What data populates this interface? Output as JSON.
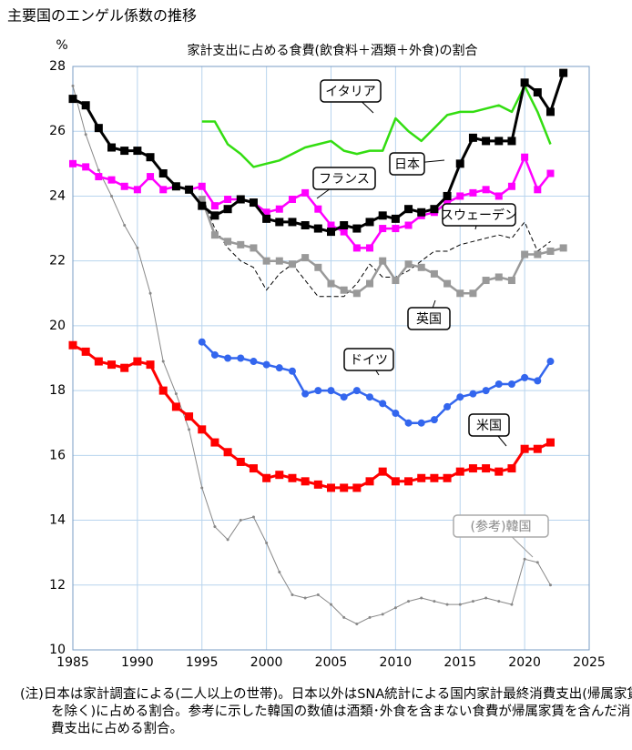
{
  "chart_data": {
    "type": "line",
    "title": "主要国のエンゲル係数の推移",
    "subtitle": "家計支出に占める食費(飲食料＋酒類＋外食)の割合",
    "y_label": "%",
    "xlim": [
      1985,
      2025
    ],
    "xticks": [
      1985,
      1990,
      1995,
      2000,
      2005,
      2010,
      2015,
      2020,
      2025
    ],
    "ylim": [
      10,
      28
    ],
    "yticks": [
      10,
      12,
      14,
      16,
      18,
      20,
      22,
      24,
      26,
      28
    ],
    "grid": true,
    "note": "(注)日本は家計調査による(二人以上の世帯)。日本以外はSNA統計による国内家計最終消費支出(帰属家賃を除く)に占める割合。参考に示した韓国の数値は酒類･外食を含まない食費が帰属家賃を含んだ消費支出に占める割合。",
    "series": [
      {
        "name": "(参考)韓国",
        "color": "#888888",
        "width": 1,
        "marker": "dot",
        "x": [
          1985,
          1986,
          1987,
          1988,
          1989,
          1990,
          1991,
          1992,
          1993,
          1994,
          1995,
          1996,
          1997,
          1998,
          1999,
          2000,
          2001,
          2002,
          2003,
          2004,
          2005,
          2006,
          2007,
          2008,
          2009,
          2010,
          2011,
          2012,
          2013,
          2014,
          2015,
          2016,
          2017,
          2018,
          2019,
          2020,
          2021,
          2022
        ],
        "values": [
          27.4,
          25.9,
          24.8,
          24.0,
          23.1,
          22.4,
          21.0,
          18.9,
          17.9,
          16.8,
          15.0,
          13.8,
          13.4,
          14.0,
          14.1,
          13.3,
          12.4,
          11.7,
          11.6,
          11.7,
          11.4,
          11.0,
          10.8,
          11.0,
          11.1,
          11.3,
          11.5,
          11.6,
          11.5,
          11.4,
          11.4,
          11.5,
          11.6,
          11.5,
          11.4,
          12.8,
          12.7,
          12.0
        ]
      },
      {
        "name": "スウェーデン",
        "color": "#000000",
        "width": 1,
        "marker": "none",
        "dashed": true,
        "x": [
          1995,
          1996,
          1997,
          1998,
          1999,
          2000,
          2001,
          2002,
          2003,
          2004,
          2005,
          2006,
          2007,
          2008,
          2009,
          2010,
          2011,
          2012,
          2013,
          2014,
          2015,
          2016,
          2017,
          2018,
          2019,
          2020,
          2021,
          2022
        ],
        "values": [
          24.0,
          23.0,
          22.4,
          22.0,
          21.8,
          21.1,
          21.6,
          21.9,
          21.4,
          20.9,
          20.9,
          20.9,
          21.3,
          21.9,
          21.5,
          21.5,
          21.7,
          22.0,
          22.3,
          22.3,
          22.5,
          22.6,
          22.7,
          22.8,
          22.7,
          23.2,
          22.3,
          22.6
        ]
      },
      {
        "name": "英国",
        "color": "#999999",
        "width": 2.5,
        "marker": "square",
        "x": [
          1995,
          1996,
          1997,
          1998,
          1999,
          2000,
          2001,
          2002,
          2003,
          2004,
          2005,
          2006,
          2007,
          2008,
          2009,
          2010,
          2011,
          2012,
          2013,
          2014,
          2015,
          2016,
          2017,
          2018,
          2019,
          2020,
          2021,
          2022,
          2023
        ],
        "values": [
          23.9,
          22.8,
          22.6,
          22.5,
          22.4,
          22.0,
          22.0,
          21.9,
          22.1,
          21.8,
          21.3,
          21.1,
          21.0,
          21.3,
          22.0,
          21.4,
          21.9,
          21.8,
          21.6,
          21.3,
          21.0,
          21.0,
          21.4,
          21.5,
          21.4,
          22.2,
          22.2,
          22.3,
          22.4
        ]
      },
      {
        "name": "イタリア",
        "color": "#33dd11",
        "width": 2.5,
        "marker": "none",
        "x": [
          1995,
          1996,
          1997,
          1998,
          1999,
          2000,
          2001,
          2002,
          2003,
          2004,
          2005,
          2006,
          2007,
          2008,
          2009,
          2010,
          2011,
          2012,
          2013,
          2014,
          2015,
          2016,
          2017,
          2018,
          2019,
          2020,
          2021,
          2022
        ],
        "values": [
          26.3,
          26.3,
          25.6,
          25.3,
          24.9,
          25.0,
          25.1,
          25.3,
          25.5,
          25.6,
          25.7,
          25.4,
          25.3,
          25.4,
          25.4,
          26.4,
          26.0,
          25.7,
          26.1,
          26.5,
          26.6,
          26.6,
          26.7,
          26.8,
          26.6,
          27.4,
          26.6,
          25.6
        ]
      },
      {
        "name": "フランス",
        "color": "#ff00ff",
        "width": 2.5,
        "marker": "square",
        "x": [
          1985,
          1986,
          1987,
          1988,
          1989,
          1990,
          1991,
          1992,
          1993,
          1994,
          1995,
          1996,
          1997,
          1998,
          1999,
          2000,
          2001,
          2002,
          2003,
          2004,
          2005,
          2006,
          2007,
          2008,
          2009,
          2010,
          2011,
          2012,
          2013,
          2014,
          2015,
          2016,
          2017,
          2018,
          2019,
          2020,
          2021,
          2022
        ],
        "values": [
          25.0,
          24.9,
          24.6,
          24.5,
          24.3,
          24.2,
          24.6,
          24.2,
          24.3,
          24.2,
          24.3,
          23.7,
          23.9,
          23.9,
          23.8,
          23.5,
          23.6,
          23.9,
          24.1,
          23.6,
          23.1,
          22.9,
          22.4,
          22.4,
          23.0,
          23.0,
          23.1,
          23.4,
          23.5,
          23.8,
          24.0,
          24.1,
          24.2,
          24.0,
          24.3,
          25.2,
          24.2,
          24.7
        ]
      },
      {
        "name": "日本",
        "color": "#000000",
        "width": 3,
        "marker": "square",
        "x": [
          1985,
          1986,
          1987,
          1988,
          1989,
          1990,
          1991,
          1992,
          1993,
          1994,
          1995,
          1996,
          1997,
          1998,
          1999,
          2000,
          2001,
          2002,
          2003,
          2004,
          2005,
          2006,
          2007,
          2008,
          2009,
          2010,
          2011,
          2012,
          2013,
          2014,
          2015,
          2016,
          2017,
          2018,
          2019,
          2020,
          2021,
          2022,
          2023
        ],
        "values": [
          27.0,
          26.8,
          26.1,
          25.5,
          25.4,
          25.4,
          25.2,
          24.7,
          24.3,
          24.2,
          23.7,
          23.4,
          23.6,
          23.9,
          23.8,
          23.3,
          23.2,
          23.2,
          23.1,
          23.0,
          22.9,
          23.1,
          23.0,
          23.2,
          23.4,
          23.3,
          23.6,
          23.5,
          23.6,
          24.0,
          25.0,
          25.8,
          25.7,
          25.7,
          25.7,
          27.5,
          27.2,
          26.6,
          27.8
        ]
      },
      {
        "name": "ドイツ",
        "color": "#3366ee",
        "width": 2.5,
        "marker": "circle",
        "x": [
          1995,
          1996,
          1997,
          1998,
          1999,
          2000,
          2001,
          2002,
          2003,
          2004,
          2005,
          2006,
          2007,
          2008,
          2009,
          2010,
          2011,
          2012,
          2013,
          2014,
          2015,
          2016,
          2017,
          2018,
          2019,
          2020,
          2021,
          2022
        ],
        "values": [
          19.5,
          19.1,
          19.0,
          19.0,
          18.9,
          18.8,
          18.7,
          18.6,
          17.9,
          18.0,
          18.0,
          17.8,
          18.0,
          17.8,
          17.6,
          17.3,
          17.0,
          17.0,
          17.1,
          17.5,
          17.8,
          17.9,
          18.0,
          18.2,
          18.2,
          18.4,
          18.3,
          18.9
        ]
      },
      {
        "name": "米国",
        "color": "#ff0000",
        "width": 3,
        "marker": "square",
        "x": [
          1985,
          1986,
          1987,
          1988,
          1989,
          1990,
          1991,
          1992,
          1993,
          1994,
          1995,
          1996,
          1997,
          1998,
          1999,
          2000,
          2001,
          2002,
          2003,
          2004,
          2005,
          2006,
          2007,
          2008,
          2009,
          2010,
          2011,
          2012,
          2013,
          2014,
          2015,
          2016,
          2017,
          2018,
          2019,
          2020,
          2021,
          2022
        ],
        "values": [
          19.4,
          19.2,
          18.9,
          18.8,
          18.7,
          18.9,
          18.8,
          18.0,
          17.5,
          17.2,
          16.8,
          16.4,
          16.1,
          15.8,
          15.6,
          15.3,
          15.4,
          15.3,
          15.2,
          15.1,
          15.0,
          15.0,
          15.0,
          15.2,
          15.5,
          15.2,
          15.2,
          15.3,
          15.3,
          15.3,
          15.5,
          15.6,
          15.6,
          15.5,
          15.6,
          16.2,
          16.2,
          16.4
        ]
      }
    ]
  }
}
